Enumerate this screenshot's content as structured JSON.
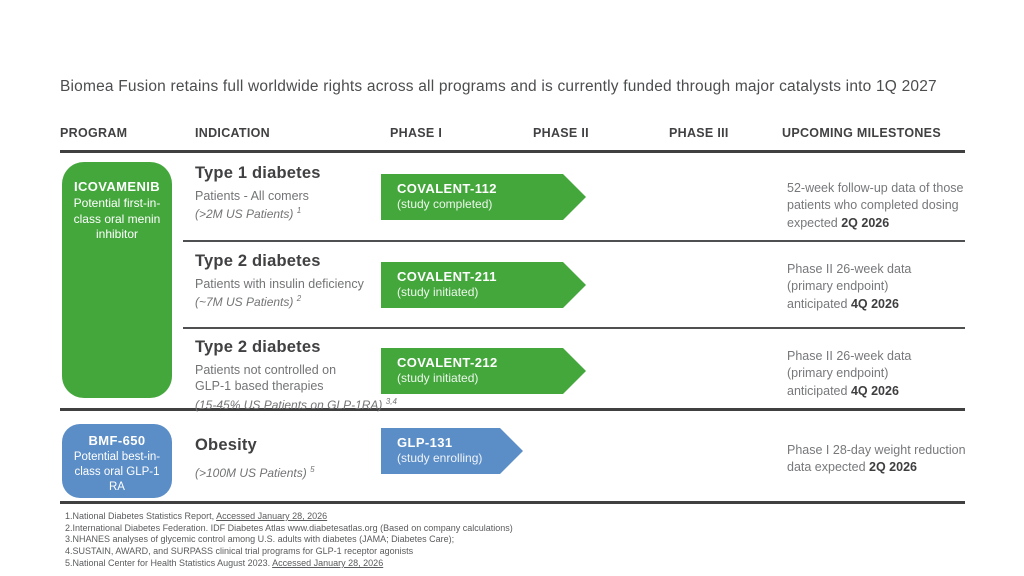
{
  "slide": {
    "title": "Biomea Fusion retains full worldwide rights across all programs and is currently funded through major catalysts into 1Q 2027"
  },
  "table": {
    "columns": [
      {
        "label": "PROGRAM"
      },
      {
        "label": "INDICATION"
      },
      {
        "label": "PHASE I"
      },
      {
        "label": "PHASE II"
      },
      {
        "label": "PHASE III"
      },
      {
        "label": "UPCOMING MILESTONES"
      }
    ]
  },
  "programs": [
    {
      "name": "ICOVAMENIB",
      "description": "Potential first-in-class oral menin inhibitor",
      "color": "#44A73C"
    },
    {
      "name": "BMF-650",
      "description": "Potential best-in-class oral GLP-1 RA",
      "color": "#5B8DC7"
    }
  ],
  "rows": [
    {
      "indication": "Type 1 diabetes",
      "detail": "Patients - All comers",
      "population": "(>2M US Patients) ",
      "population_sup": "1",
      "trial": {
        "name": "COVALENT-112",
        "status": "(study completed)",
        "color": "#44A73C"
      },
      "milestone_text": "52-week follow-up data of those\npatients who completed dosing\nexpected",
      "milestone_date": "2Q 2026"
    },
    {
      "indication": "Type 2 diabetes",
      "detail": "Patients with insulin deficiency",
      "population": "(~7M US Patients) ",
      "population_sup": "2",
      "trial": {
        "name": "COVALENT-211",
        "status": "(study initiated)",
        "color": "#44A73C"
      },
      "milestone_text": "Phase II 26-week data\n(primary endpoint)\nanticipated",
      "milestone_date": "4Q 2026"
    },
    {
      "indication": "Type 2 diabetes",
      "detail": "Patients not controlled on\nGLP-1 based therapies",
      "population": "(15-45% US Patients on GLP-1RA) ",
      "population_sup": "3,4",
      "trial": {
        "name": "COVALENT-212",
        "status": "(study initiated)",
        "color": "#44A73C"
      },
      "milestone_text": "Phase II 26-week data\n(primary endpoint)\nanticipated",
      "milestone_date": "4Q 2026"
    },
    {
      "indication": "Obesity",
      "detail": "",
      "population": "(>100M US Patients) ",
      "population_sup": "5",
      "trial": {
        "name": "GLP-131",
        "status": "(study enrolling)",
        "color": "#5B8DC7"
      },
      "milestone_text": "Phase I 28-day weight reduction\ndata expected",
      "milestone_date": "2Q 2026"
    }
  ],
  "footnotes": [
    {
      "text": "1.National Diabetes Statistics Report, ",
      "link": "Accessed January 28, 2026"
    },
    {
      "text": "2.International Diabetes Federation. IDF Diabetes Atlas www.diabetesatlas.org (Based on company calculations)"
    },
    {
      "text": "3.NHANES analyses of glycemic control among U.S. adults with diabetes (JAMA; Diabetes Care);"
    },
    {
      "text": "4.SUSTAIN, AWARD, and SURPASS clinical trial programs for GLP-1 receptor agonists"
    },
    {
      "text": "5.National Center for Health Statistics August 2023. ",
      "link": "Accessed January 28, 2026"
    }
  ],
  "colors": {
    "accent_green": "#44A73C",
    "accent_blue": "#5B8DC7",
    "line_dark": "#404041",
    "text_dark": "#414042",
    "text_gray": "#77787B"
  }
}
